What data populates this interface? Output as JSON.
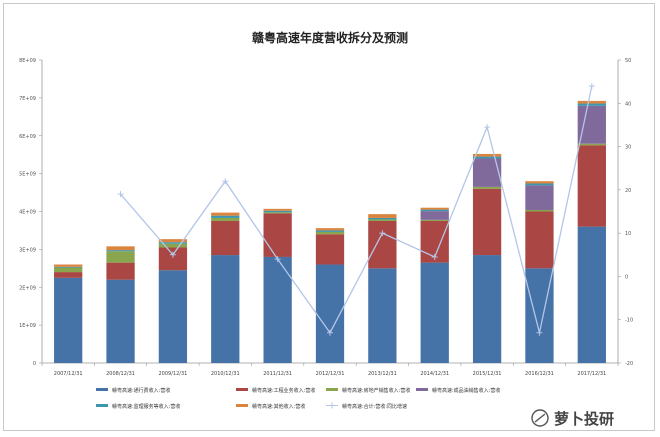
{
  "chart_data": {
    "type": "bar",
    "stacked": true,
    "title": "赣粤高速年度营收拆分及预测",
    "categories": [
      "2007/12/31",
      "2008/12/31",
      "2009/12/31",
      "2010/12/31",
      "2011/12/31",
      "2012/12/31",
      "2013/12/31",
      "2014/12/31",
      "2015/12/31",
      "2016/12/31",
      "2017/12/31"
    ],
    "y_left": {
      "min": 0,
      "max": 80,
      "step": 10,
      "tick_labels": [
        "0",
        "1E+09",
        "2E+09",
        "3E+09",
        "4E+09",
        "5E+09",
        "6E+09",
        "7E+09",
        "8E+09"
      ]
    },
    "y_right": {
      "min": -20,
      "max": 50,
      "step": 10,
      "tick_labels": [
        "-20",
        "-10",
        "0",
        "10",
        "20",
        "30",
        "40",
        "50"
      ]
    },
    "series": [
      {
        "name": "赣粤高速:通行费收入:营收",
        "color": "#4572a7",
        "values": [
          22.5,
          22,
          24.5,
          28.5,
          28,
          26,
          25,
          26.5,
          28.5,
          25,
          36
        ]
      },
      {
        "name": "赣粤高速:工程业务收入:营收",
        "color": "#aa4643",
        "values": [
          1.5,
          4.5,
          6,
          9,
          11.5,
          8,
          12.5,
          11,
          17.5,
          15,
          21.5
        ]
      },
      {
        "name": "赣粤高速:房地产销售收入:营收",
        "color": "#89a54e",
        "values": [
          1.2,
          3,
          1,
          0.8,
          0.3,
          0.6,
          0.4,
          0.3,
          0.5,
          0.4,
          0.4
        ]
      },
      {
        "name": "赣粤高速:成品油销售收入:营收",
        "color": "#80699b",
        "values": [
          0,
          0,
          0,
          0,
          0,
          0,
          0,
          2.3,
          7.5,
          6.5,
          10
        ]
      },
      {
        "name": "赣粤高速:监理服务等收入:营收",
        "color": "#3d96ae",
        "values": [
          0.2,
          0.3,
          0.4,
          0.6,
          0.4,
          0.4,
          0.4,
          0.4,
          0.5,
          0.5,
          0.6
        ]
      },
      {
        "name": "赣粤高速:其他收入:营收",
        "color": "#db843d",
        "values": [
          0.6,
          1,
          0.8,
          0.8,
          0.5,
          0.6,
          1,
          0.5,
          0.7,
          0.6,
          0.7
        ]
      }
    ],
    "line_series": {
      "name": "赣粤高速:合计:营收:同比增速",
      "color": "#b3c6e7",
      "axis": "right",
      "values": [
        null,
        19,
        5,
        22,
        4,
        -13,
        10,
        4.5,
        34.5,
        -13,
        44
      ]
    },
    "legend_position": "bottom",
    "grid": false
  },
  "watermark": "萝卜投研"
}
